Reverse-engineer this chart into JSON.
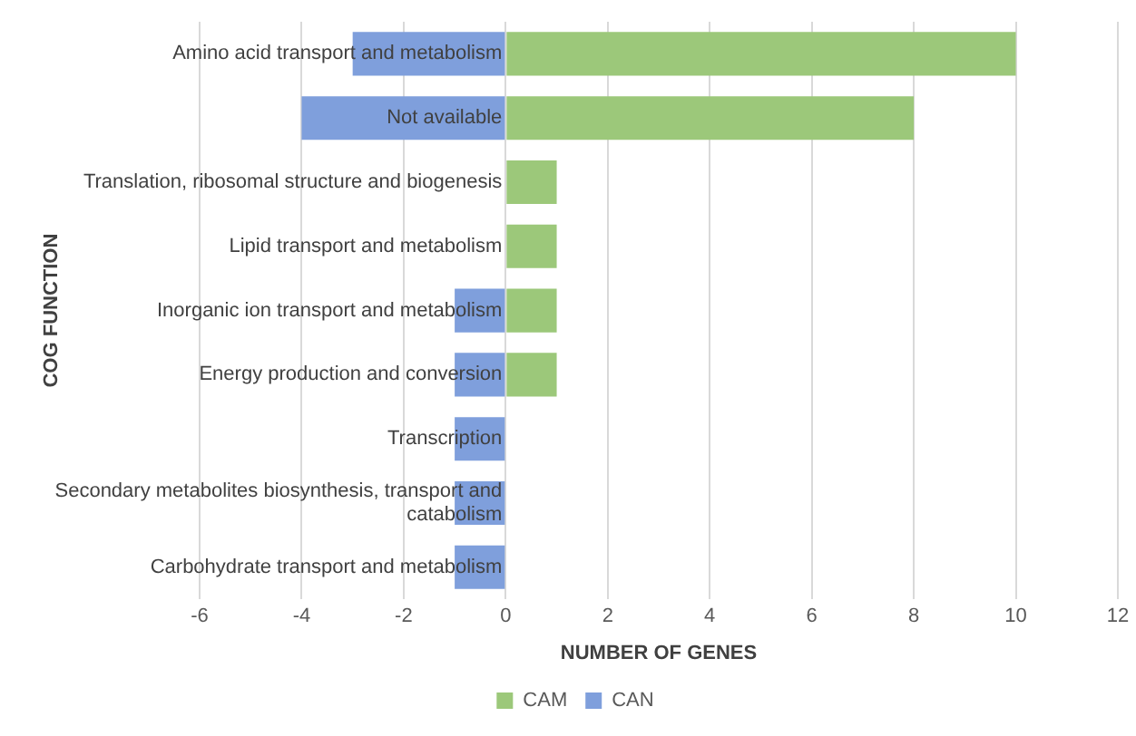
{
  "chart_data": {
    "type": "bar",
    "orientation": "horizontal",
    "stacked": true,
    "xlabel": "NUMBER OF GENES",
    "ylabel": "COG FUNCTION",
    "categories": [
      "Amino acid transport and metabolism",
      "Not available",
      "Translation, ribosomal structure and biogenesis",
      "Lipid transport and metabolism",
      "Inorganic ion transport and metabolism",
      "Energy production and conversion",
      "Transcription",
      "Secondary metabolites biosynthesis, transport and catabolism",
      "Carbohydrate transport and metabolism"
    ],
    "series": [
      {
        "name": "CAM",
        "color": "#9cc87a",
        "values": [
          10,
          8,
          1,
          1,
          1,
          1,
          0,
          0,
          0
        ]
      },
      {
        "name": "CAN",
        "color": "#7f9fdc",
        "values": [
          -3,
          -4,
          0,
          0,
          -1,
          -1,
          -1,
          -1,
          -1
        ]
      }
    ],
    "xlim": [
      -6,
      12
    ],
    "xticks": [
      -6,
      -4,
      -2,
      0,
      2,
      4,
      6,
      8,
      10,
      12
    ],
    "grid": "x",
    "legend": "bottom"
  }
}
